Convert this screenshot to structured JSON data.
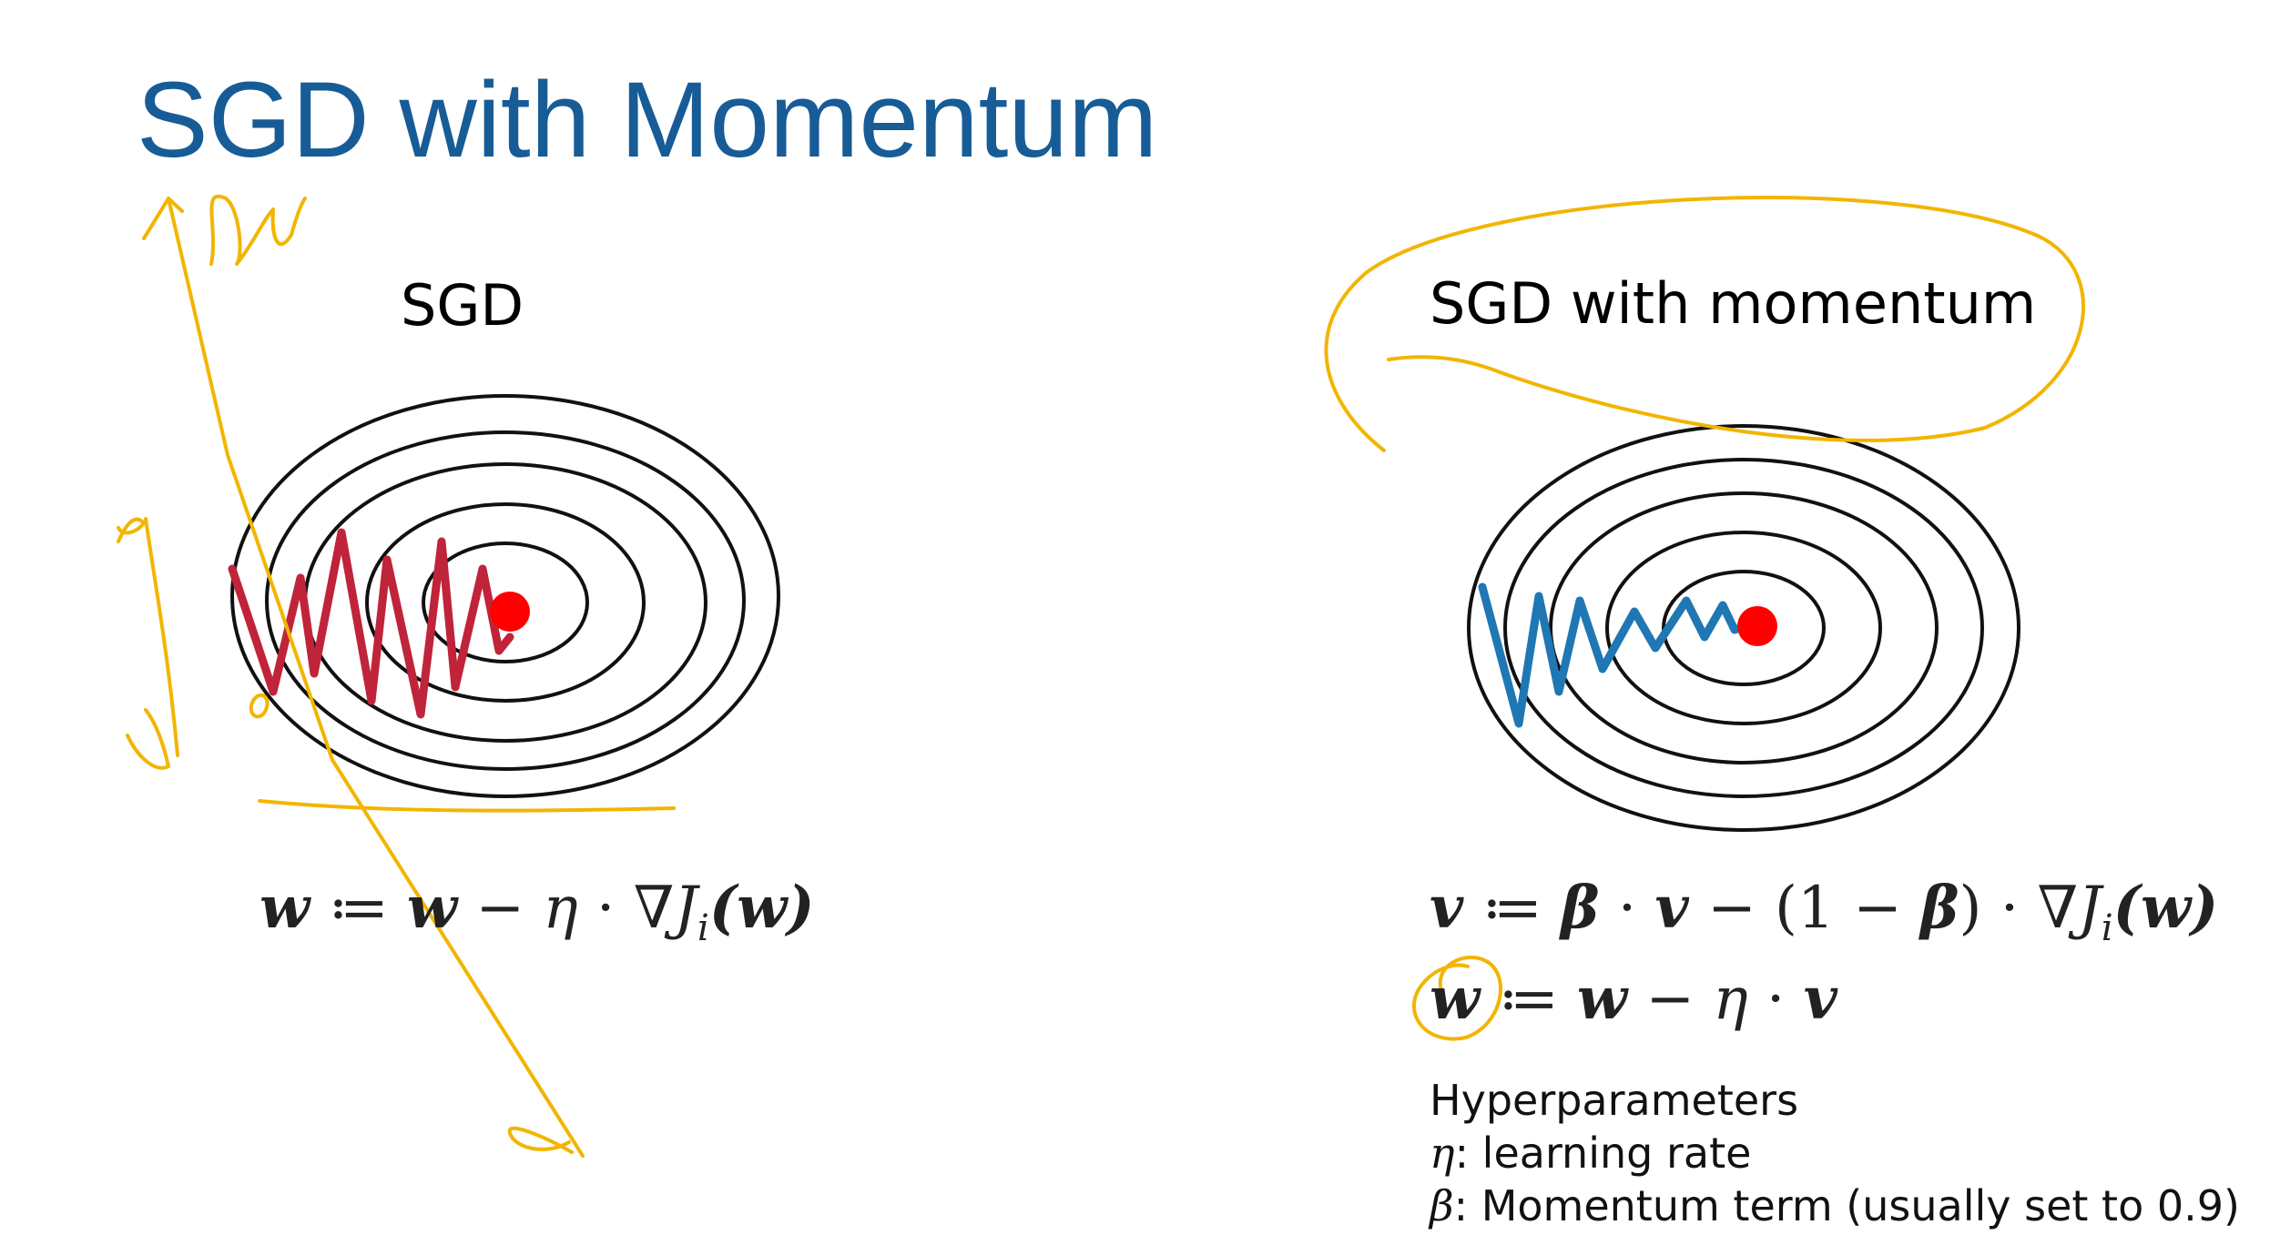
{
  "slide": {
    "title": "SGD with Momentum"
  },
  "panels": {
    "sgd": {
      "label": "SGD",
      "equation": {
        "lhs": "w",
        "assign": " ≔ ",
        "w": "w",
        "minus": " − ",
        "eta": "η",
        "dot": " · ",
        "grad": "∇J",
        "sub": "i",
        "arg": "(w)"
      }
    },
    "momentum": {
      "label": "SGD with momentum",
      "equation_v": {
        "lhs": "v",
        "assign": " ≔ ",
        "beta": "β",
        "dot": " · ",
        "v": "v",
        "minus": " − ",
        "paren": "(1 − ",
        "beta2": "β",
        "paren_close": ")",
        "dot2": " · ",
        "grad": "∇J",
        "sub": "i",
        "arg": "(w)"
      },
      "equation_w": {
        "lhs": "w",
        "assign": " ≔ ",
        "w": "w",
        "minus": " − ",
        "eta": "η",
        "dot": " · ",
        "v": "v"
      }
    }
  },
  "hyperparameters": {
    "heading": "Hyperparameters",
    "items": [
      {
        "symbol": "η",
        "text": ": learning rate"
      },
      {
        "symbol": "β",
        "text": ": Momentum term (usually set to 0.9)"
      }
    ]
  },
  "colors": {
    "title": "#175C96",
    "contour": "#111111",
    "minimum": "#FF0000",
    "sgd_path": "#C0243A",
    "momentum_path": "#1F77B4",
    "annotation": "#F2B500"
  }
}
